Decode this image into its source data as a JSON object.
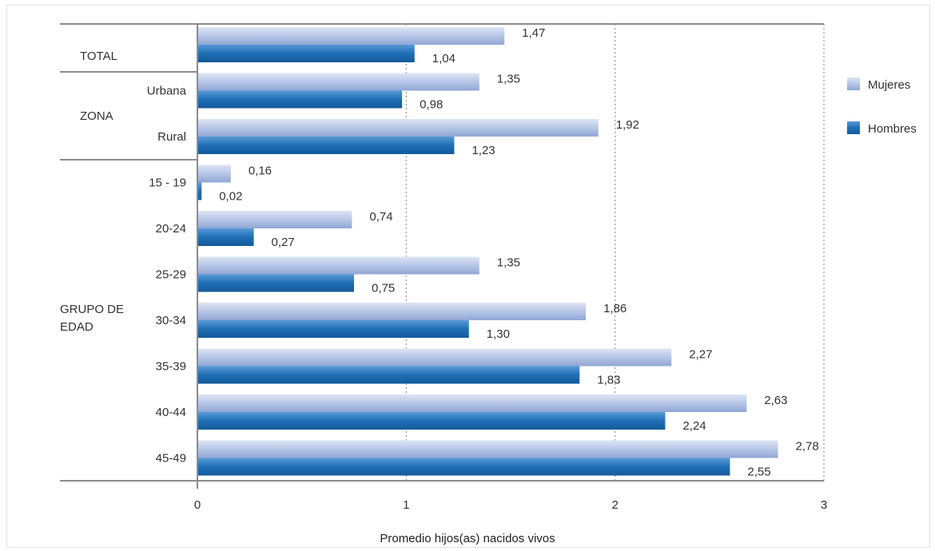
{
  "chart_data": {
    "type": "bar",
    "orientation": "horizontal",
    "xlabel": "Promedio hijos(as) nacidos vivos",
    "xlim": [
      0,
      3
    ],
    "xticks": [
      "0",
      "1",
      "2",
      "3"
    ],
    "grid": true,
    "legend": "right",
    "groups": [
      {
        "label": "TOTAL",
        "categories": [
          "TOTAL"
        ]
      },
      {
        "label": "ZONA",
        "categories": [
          "Urbana",
          "Rural"
        ]
      },
      {
        "label": "GRUPO DE EDAD",
        "categories": [
          "15 - 19",
          "20-24",
          "25-29",
          "30-34",
          "35-39",
          "40-44",
          "45-49"
        ]
      }
    ],
    "categories": [
      "TOTAL",
      "Urbana",
      "Rural",
      "15 - 19",
      "20-24",
      "25-29",
      "30-34",
      "35-39",
      "40-44",
      "45-49"
    ],
    "series": [
      {
        "name": "Mujeres",
        "color": "#b3c4e6",
        "values": [
          1.47,
          1.35,
          1.92,
          0.16,
          0.74,
          1.35,
          1.86,
          2.27,
          2.63,
          2.78
        ],
        "labels": [
          "1,47",
          "1,35",
          "1,92",
          "0,16",
          "0,74",
          "1,35",
          "1,86",
          "2,27",
          "2,63",
          "2,78"
        ]
      },
      {
        "name": "Hombres",
        "color": "#1f6fb5",
        "values": [
          1.04,
          0.98,
          1.23,
          0.02,
          0.27,
          0.75,
          1.3,
          1.83,
          2.24,
          2.55
        ],
        "labels": [
          "1,04",
          "0,98",
          "1,23",
          "0,02",
          "0,27",
          "0,75",
          "1,30",
          "1,83",
          "2,24",
          "2,55"
        ]
      }
    ]
  }
}
